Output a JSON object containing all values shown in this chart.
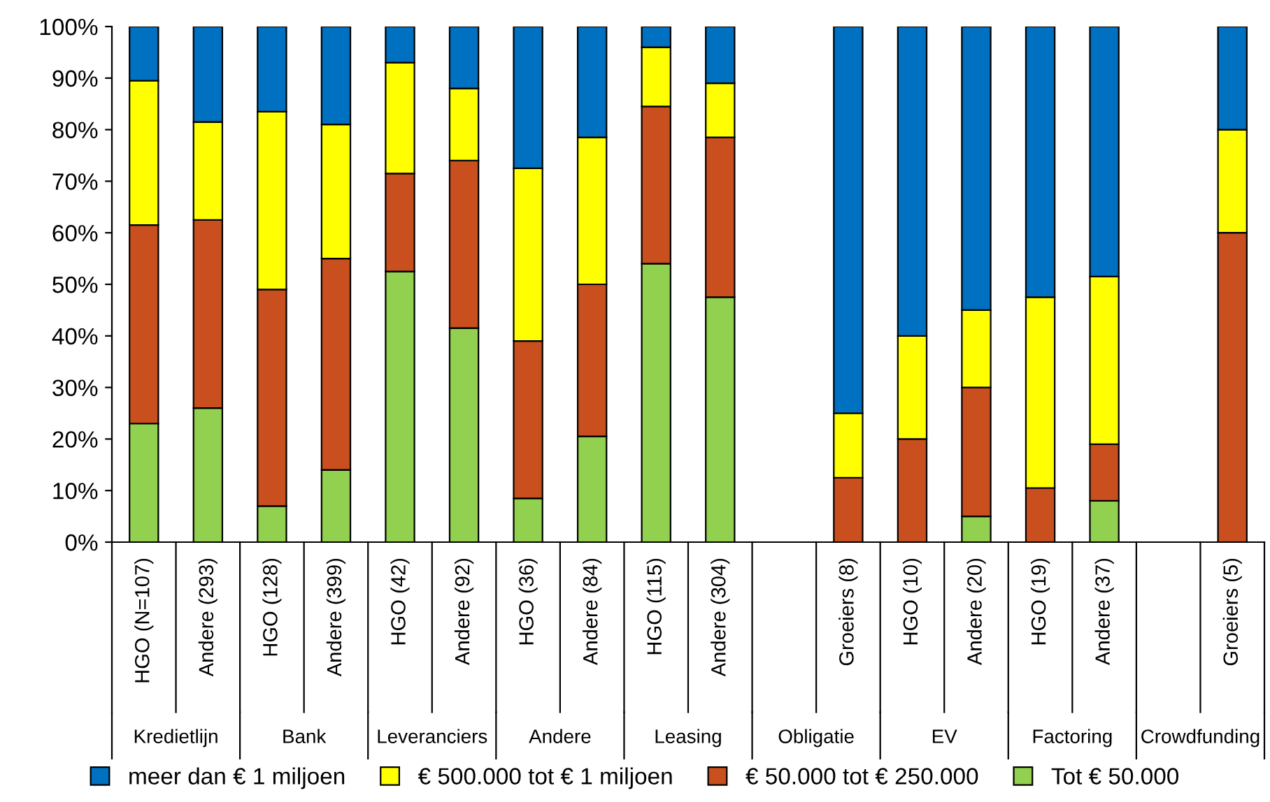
{
  "chart_data": {
    "type": "bar",
    "stacked": true,
    "categories": [
      "HGO (N=107)",
      "Andere (293)",
      "HGO (128)",
      "Andere (399)",
      "HGO (42)",
      "Andere (92)",
      "HGO (36)",
      "Andere (84)",
      "HGO (115)",
      "Andere (304)",
      null,
      "Groeiers (8)",
      "HGO (10)",
      "Andere (20)",
      "HGO (19)",
      "Andere (37)",
      null,
      "Groeiers (5)"
    ],
    "series": [
      {
        "name": "Tot € 50.000",
        "color": "#92d050",
        "values": [
          23,
          26,
          7,
          14,
          52.5,
          41.5,
          8.5,
          20.5,
          54,
          47.5,
          null,
          0,
          0,
          5,
          0,
          8,
          null,
          0
        ]
      },
      {
        "name": "€ 50.000 tot € 250.000",
        "color": "#c9501e",
        "values": [
          38.5,
          36.5,
          42,
          41,
          19,
          32.5,
          30.5,
          29.5,
          30.5,
          31,
          null,
          12.5,
          20,
          25,
          10.5,
          11,
          null,
          60
        ]
      },
      {
        "name": "€ 500.000 tot € 1 miljoen",
        "color": "#ffff00",
        "values": [
          28,
          19,
          34.5,
          26,
          21.5,
          14,
          33.5,
          28.5,
          11.5,
          10.5,
          null,
          12.5,
          20,
          15,
          37,
          32.5,
          null,
          20
        ]
      },
      {
        "name": "meer dan € 1 miljoen",
        "color": "#0070c0",
        "values": [
          10.5,
          18.5,
          16.5,
          19,
          7,
          12,
          27.5,
          21.5,
          4,
          11,
          null,
          75,
          60,
          55,
          52.5,
          48.5,
          null,
          20
        ]
      }
    ],
    "ylim": [
      0,
      100
    ],
    "yticks": [
      {
        "value": 0,
        "label": "0%"
      },
      {
        "value": 10,
        "label": "10%"
      },
      {
        "value": 20,
        "label": "20%"
      },
      {
        "value": 30,
        "label": "30%"
      },
      {
        "value": 40,
        "label": "40%"
      },
      {
        "value": 50,
        "label": "50%"
      },
      {
        "value": 60,
        "label": "60%"
      },
      {
        "value": 70,
        "label": "70%"
      },
      {
        "value": 80,
        "label": "80%"
      },
      {
        "value": 90,
        "label": "90%"
      },
      {
        "value": 100,
        "label": "100%"
      }
    ],
    "annotations": [
      "Kredietlijn",
      "Bank",
      "Leveranciers",
      "Andere",
      "Leasing",
      "Obligatie",
      "EV",
      "Factoring",
      "Crowdfunding"
    ],
    "grid": false,
    "legend": "bottom"
  }
}
